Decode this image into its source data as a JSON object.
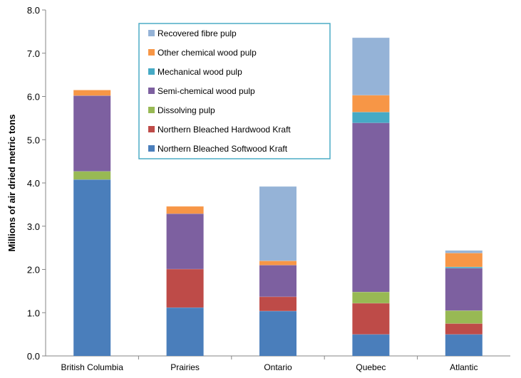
{
  "chart_data": {
    "type": "bar",
    "stacked": true,
    "title": "",
    "xlabel": "",
    "ylabel": "Millions of air dried metric tons",
    "ylim": [
      0,
      8
    ],
    "yticks": [
      "0.0",
      "1.0",
      "2.0",
      "3.0",
      "4.0",
      "5.0",
      "6.0",
      "7.0",
      "8.0"
    ],
    "grid": false,
    "legend_position": "top-center",
    "categories": [
      "British Columbia",
      "Prairies",
      "Ontario",
      "Quebec",
      "Atlantic"
    ],
    "series": [
      {
        "name": "Northern Bleached Softwood Kraft",
        "color": "#4a7ebb",
        "values": [
          4.08,
          1.12,
          1.04,
          0.5,
          0.5
        ]
      },
      {
        "name": "Northern Bleached Hardwood Kraft",
        "color": "#be4b48",
        "values": [
          0.0,
          0.89,
          0.33,
          0.72,
          0.25
        ]
      },
      {
        "name": "Dissolving pulp",
        "color": "#98b954",
        "values": [
          0.19,
          0.0,
          0.0,
          0.26,
          0.3
        ]
      },
      {
        "name": "Semi-chemical wood pulp",
        "color": "#7d60a0",
        "values": [
          1.75,
          1.28,
          0.73,
          3.91,
          0.98
        ]
      },
      {
        "name": "Mechanical wood pulp",
        "color": "#46aac5",
        "values": [
          0.0,
          0.0,
          0.0,
          0.25,
          0.03
        ]
      },
      {
        "name": "Other chemical wood pulp",
        "color": "#f79646",
        "values": [
          0.13,
          0.17,
          0.1,
          0.39,
          0.32
        ]
      },
      {
        "name": "Recovered fibre pulp",
        "color": "#95b3d7",
        "values": [
          0.0,
          0.0,
          1.72,
          1.33,
          0.06
        ]
      }
    ]
  }
}
